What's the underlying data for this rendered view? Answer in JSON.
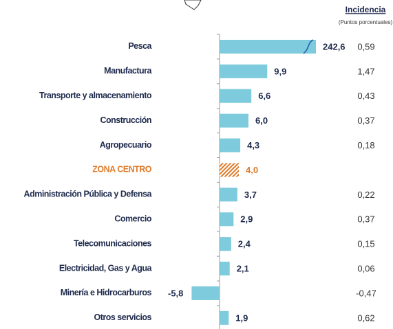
{
  "chart_data": {
    "type": "bar",
    "orientation": "horizontal",
    "categories": [
      "Pesca",
      "Manufactura",
      "Transporte y almacenamiento",
      "Construcción",
      "Agropecuario",
      "ZONA CENTRO",
      "Administración Pública y Defensa",
      "Comercio",
      "Telecomunicaciones",
      "Electricidad, Gas y Agua",
      "Minería e Hidrocarburos",
      "Otros servicios"
    ],
    "values": [
      242.6,
      9.9,
      6.6,
      6.0,
      4.3,
      4.0,
      3.7,
      2.9,
      2.4,
      2.1,
      -5.8,
      1.9
    ],
    "value_labels": [
      "242,6",
      "9,9",
      "6,6",
      "6,0",
      "4,3",
      "4,0",
      "3,7",
      "2,9",
      "2,4",
      "2,1",
      "-5,8",
      "1,9"
    ],
    "colors": [
      "#7dcbdc",
      "#7dcbdc",
      "#7dcbdc",
      "#7dcbdc",
      "#7dcbdc",
      "#e07b2a",
      "#7dcbdc",
      "#7dcbdc",
      "#7dcbdc",
      "#7dcbdc",
      "#7dcbdc",
      "#7dcbdc"
    ],
    "patterns": [
      "solid",
      "solid",
      "solid",
      "solid",
      "solid",
      "hatch",
      "solid",
      "solid",
      "solid",
      "solid",
      "solid",
      "solid"
    ],
    "xlim": [
      -6,
      20
    ],
    "incidencia_title": "Incidencia",
    "incidencia_subtitle": "(Puntos porcentuales)",
    "incidencia": [
      0.59,
      1.47,
      0.43,
      0.37,
      0.18,
      null,
      0.22,
      0.37,
      0.15,
      0.06,
      -0.47,
      0.62
    ],
    "incidencia_labels": [
      "0,59",
      "1,47",
      "0,43",
      "0,37",
      "0,18",
      null,
      "0,22",
      "0,37",
      "0,15",
      "0,06",
      "-0,47",
      "0,62"
    ]
  }
}
